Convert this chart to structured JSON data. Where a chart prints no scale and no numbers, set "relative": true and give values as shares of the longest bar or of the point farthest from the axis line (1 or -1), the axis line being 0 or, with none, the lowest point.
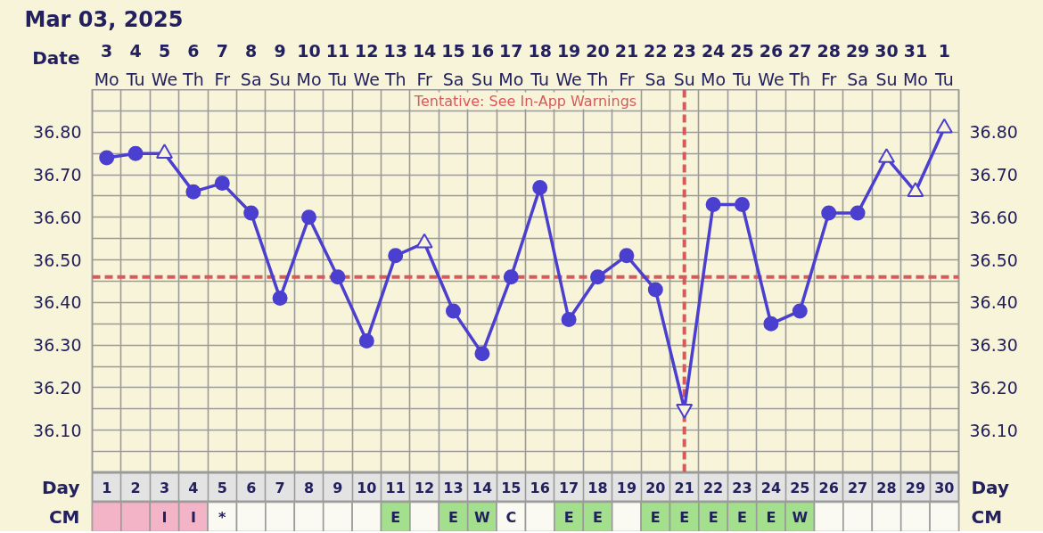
{
  "chart_data": [
    {
      "type": "line",
      "title": "Mar 03, 2025",
      "xlabel": "Date",
      "x2label": "Day",
      "categories": [
        "3",
        "4",
        "5",
        "6",
        "7",
        "8",
        "9",
        "10",
        "11",
        "12",
        "13",
        "14",
        "15",
        "16",
        "17",
        "18",
        "19",
        "20",
        "21",
        "22",
        "23",
        "24",
        "25",
        "26",
        "27",
        "28",
        "29",
        "30",
        "31",
        "1"
      ],
      "x2lim": [
        0.5,
        30.5
      ],
      "x2ticks": [
        1,
        2,
        3,
        4,
        5,
        6,
        7,
        8,
        9,
        10,
        11,
        12,
        13,
        14,
        15,
        16,
        17,
        18,
        19,
        20,
        21,
        22,
        23,
        24,
        25,
        26,
        27,
        28,
        29,
        30
      ],
      "ylim": [
        36.0,
        36.9
      ],
      "yticks": [
        {
          "value": 36.05,
          "label": null
        },
        {
          "value": 36.1,
          "label": "36.10"
        },
        {
          "value": 36.15,
          "label": null
        },
        {
          "value": 36.2,
          "label": "36.20"
        },
        {
          "value": 36.25,
          "label": null
        },
        {
          "value": 36.3,
          "label": "36.30"
        },
        {
          "value": 36.35,
          "label": null
        },
        {
          "value": 36.4,
          "label": "36.40"
        },
        {
          "value": 36.45,
          "label": null
        },
        {
          "value": 36.5,
          "label": "36.50"
        },
        {
          "value": 36.55,
          "label": null
        },
        {
          "value": 36.6,
          "label": "36.60"
        },
        {
          "value": 36.65,
          "label": null
        },
        {
          "value": 36.7,
          "label": "36.70"
        },
        {
          "value": 36.75,
          "label": null
        },
        {
          "value": 36.8,
          "label": "36.80"
        },
        {
          "value": 36.85,
          "label": null
        }
      ],
      "y2lim": [
        36.0,
        36.9
      ],
      "y2ticks": [
        {
          "value": 36.05,
          "label": null
        },
        {
          "value": 36.1,
          "label": "36.10"
        },
        {
          "value": 36.15,
          "label": null
        },
        {
          "value": 36.2,
          "label": "36.20"
        },
        {
          "value": 36.25,
          "label": null
        },
        {
          "value": 36.3,
          "label": "36.30"
        },
        {
          "value": 36.35,
          "label": null
        },
        {
          "value": 36.4,
          "label": "36.40"
        },
        {
          "value": 36.45,
          "label": null
        },
        {
          "value": 36.5,
          "label": "36.50"
        },
        {
          "value": 36.55,
          "label": null
        },
        {
          "value": 36.6,
          "label": "36.60"
        },
        {
          "value": 36.65,
          "label": null
        },
        {
          "value": 36.7,
          "label": "36.70"
        },
        {
          "value": 36.75,
          "label": null
        },
        {
          "value": 36.8,
          "label": "36.80"
        },
        {
          "value": 36.85,
          "label": null
        }
      ],
      "grid": true,
      "series": [
        {
          "type": "line",
          "color": "#4b3fcf",
          "marker": "none",
          "values": [
            36.74,
            36.75,
            36.75,
            36.66,
            36.68,
            36.61,
            36.41,
            36.6,
            36.46,
            36.31,
            36.51,
            36.54,
            36.38,
            36.28,
            36.46,
            36.67,
            36.36,
            36.46,
            36.51,
            36.43,
            36.15,
            36.63,
            36.63,
            36.35,
            36.38,
            36.61,
            36.61,
            36.74,
            36.66,
            36.81
          ]
        },
        {
          "type": "scatter",
          "color": "#4b3fcf",
          "marker": "circle",
          "values": [
            36.74,
            36.75,
            null,
            36.66,
            36.68,
            36.61,
            36.41,
            36.6,
            36.46,
            36.31,
            36.51,
            null,
            36.38,
            36.28,
            36.46,
            36.67,
            36.36,
            36.46,
            36.51,
            36.43,
            null,
            36.63,
            36.63,
            36.35,
            36.38,
            36.61,
            36.61,
            null,
            null,
            null
          ]
        },
        {
          "type": "scatter",
          "color": "#4b3fcf",
          "marker": "triangle",
          "values": [
            null,
            null,
            36.75,
            null,
            null,
            null,
            null,
            null,
            null,
            null,
            null,
            36.54,
            null,
            null,
            null,
            null,
            null,
            null,
            null,
            null,
            null,
            null,
            null,
            null,
            null,
            null,
            null,
            36.74,
            36.66,
            36.81
          ]
        },
        {
          "type": "scatter",
          "color": "#4b3fcf",
          "values": [
            null,
            null,
            null,
            null,
            null,
            null,
            null,
            null,
            null,
            null,
            null,
            null,
            null,
            null,
            null,
            null,
            null,
            null,
            null,
            null,
            36.15,
            null,
            null,
            null,
            null,
            null,
            null,
            null,
            null,
            null
          ]
        }
      ],
      "ref_lines": [
        {
          "axis": "x2",
          "value": 21,
          "color": "#d75a5a",
          "line_style": "dashed"
        },
        {
          "axis": "y",
          "value": 36.46,
          "color": "#d75a5a",
          "line_style": "dashed"
        }
      ],
      "annotations": [
        "Tentative: See In-App Warnings",
        "Mo",
        "Tu",
        "We",
        "Th",
        "Fr",
        "Sa",
        "Su",
        "Mo",
        "Tu",
        "We",
        "Th",
        "Fr",
        "Sa",
        "Su",
        "Mo",
        "Tu",
        "We",
        "Th",
        "Fr",
        "Sa",
        "Su",
        "Mo",
        "Tu",
        "We",
        "Th",
        "Fr",
        "Sa",
        "Su",
        "Mo",
        "Tu"
      ]
    },
    {
      "type": "bar",
      "relative": true,
      "title": "CM",
      "categories": [
        null,
        null,
        "I",
        "I",
        "*",
        null,
        null,
        null,
        null,
        null,
        "E",
        null,
        "E",
        "W",
        "C",
        null,
        "E",
        "E",
        null,
        "E",
        "E",
        "E",
        "E",
        "E",
        "W",
        null,
        null,
        null,
        null,
        null
      ],
      "values": [
        1,
        1,
        1,
        1,
        1,
        1,
        1,
        1,
        1,
        1,
        1,
        1,
        1,
        1,
        1,
        1,
        1,
        1,
        1,
        1,
        1,
        1,
        1,
        1,
        1,
        1,
        1,
        1,
        1,
        1
      ],
      "colors": [
        "#f4b4c8",
        "#f4b4c8",
        "#f4b4c8",
        "#f4b4c8",
        "#fafaf2",
        "#fafaf2",
        "#fafaf2",
        "#fafaf2",
        "#fafaf2",
        "#fafaf2",
        "#a3df8c",
        "#fafaf2",
        "#a3df8c",
        "#a3df8c",
        "#fafaf2",
        "#fafaf2",
        "#a3df8c",
        "#a3df8c",
        "#fafaf2",
        "#a3df8c",
        "#a3df8c",
        "#a3df8c",
        "#a3df8c",
        "#a3df8c",
        "#a3df8c",
        "#fafaf2",
        "#fafaf2",
        "#fafaf2",
        "#fafaf2",
        "#fafaf2"
      ]
    }
  ]
}
